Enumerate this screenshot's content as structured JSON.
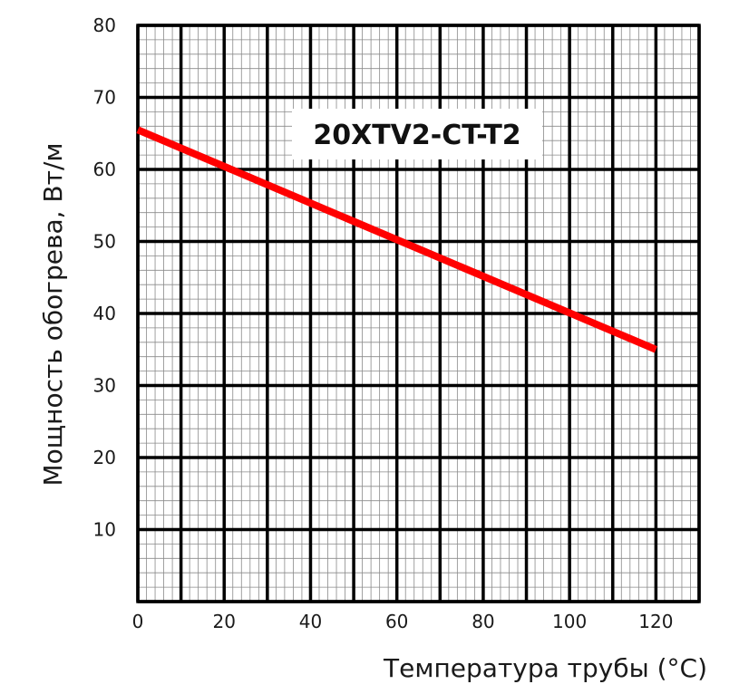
{
  "chart_data": {
    "type": "line",
    "title": "20XTV2-CT-T2",
    "xlabel": "Температура трубы (°C)",
    "ylabel": "Мощность обогрева, Вт/м",
    "xlim": [
      0,
      130
    ],
    "ylim": [
      0,
      80
    ],
    "x_ticks": [
      "0",
      "20",
      "40",
      "60",
      "80",
      "100",
      "120"
    ],
    "y_ticks": [
      "10",
      "20",
      "30",
      "40",
      "50",
      "60",
      "70",
      "80"
    ],
    "grid": true,
    "series": [
      {
        "color": "#ff0000",
        "x": [
          0,
          120
        ],
        "y": [
          65.5,
          35
        ]
      }
    ]
  }
}
